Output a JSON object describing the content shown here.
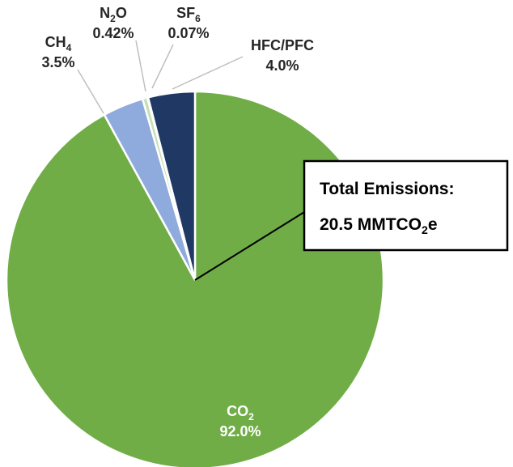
{
  "chart_data": {
    "type": "pie",
    "title": "",
    "slices": [
      {
        "gas": "CO",
        "sub": "2",
        "label": "92.0%",
        "value": 92.0,
        "color": "#70ad47"
      },
      {
        "gas": "CH",
        "sub": "4",
        "label": "3.5%",
        "value": 3.5,
        "color": "#8faadc"
      },
      {
        "gas": "N",
        "sub": "2",
        "gas_after": "O",
        "label": "0.42%",
        "value": 0.42,
        "color": "#c5e0b4"
      },
      {
        "gas": "SF",
        "sub": "6",
        "label": "0.07%",
        "value": 0.07,
        "color": "#ffc000"
      },
      {
        "gas": "HFC/PFC",
        "sub": "",
        "label": "4.0%",
        "value": 4.0,
        "color": "#203864"
      }
    ],
    "annotation": {
      "line1": "Total Emissions:",
      "line2_main": "20.5 MMTCO",
      "line2_sub": "2",
      "line2_end": "e"
    }
  }
}
